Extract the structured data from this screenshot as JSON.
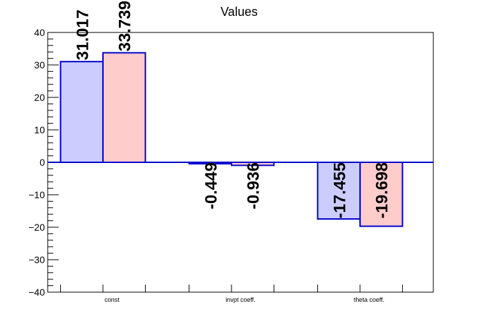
{
  "chart_data": {
    "type": "bar",
    "title": "Values",
    "xlabel": "",
    "ylabel": "",
    "categories": [
      "const",
      "invpt coeff.",
      "theta coeff."
    ],
    "series": [
      {
        "values": [
          31.017,
          -0.449,
          -17.455
        ],
        "value_labels": [
          "31.017",
          "-0.449",
          "-17.455"
        ],
        "fill": "#ccccff",
        "stroke": "#0000cc"
      },
      {
        "values": [
          33.739,
          -0.936,
          -19.698
        ],
        "value_labels": [
          "33.739",
          "-0.936",
          "-19.698"
        ],
        "fill": "#ffcccc",
        "stroke": "#0000cc"
      }
    ],
    "ylim": [
      -40,
      40
    ],
    "yticks": [
      -40,
      -30,
      -20,
      -10,
      0,
      10,
      20,
      30,
      40
    ],
    "ytick_labels": [
      "−40",
      "−30",
      "−20",
      "−10",
      "0",
      "10",
      "20",
      "30",
      "40"
    ],
    "grid": false,
    "colors": {
      "axis": "#000000",
      "zero_line": "#0000cc"
    }
  }
}
